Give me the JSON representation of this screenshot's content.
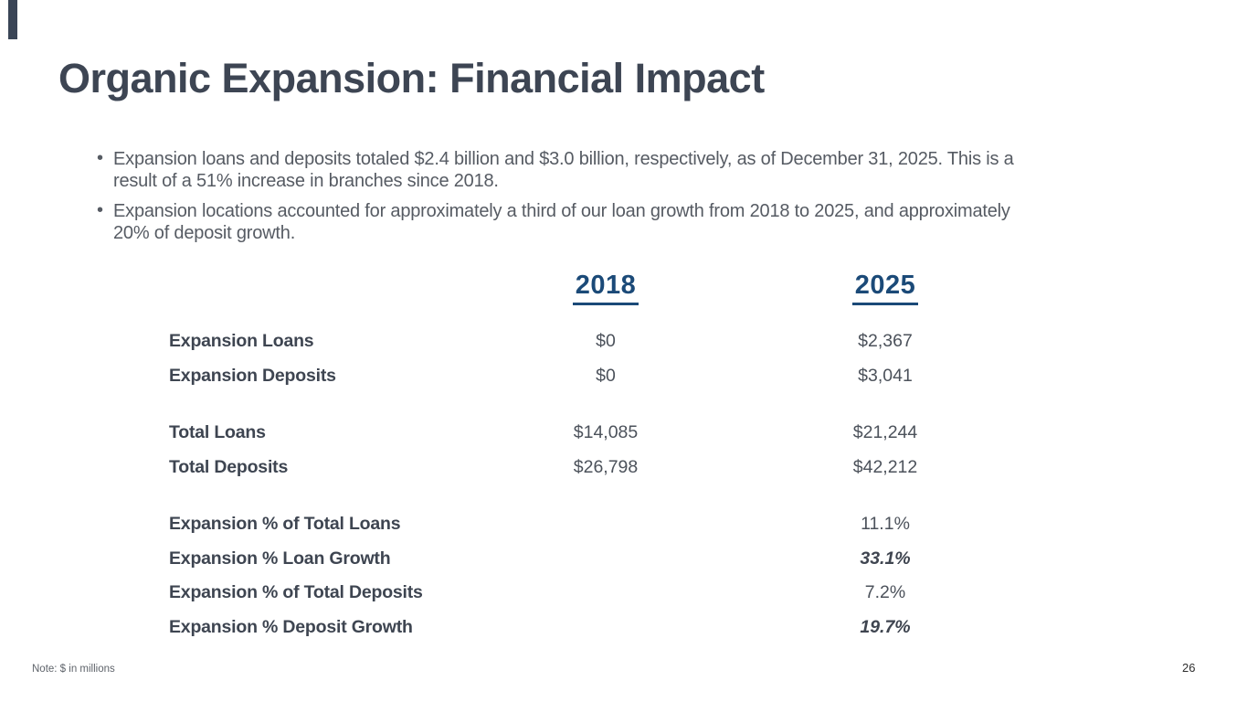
{
  "slide": {
    "title": "Organic Expansion: Financial Impact",
    "bullets": [
      "Expansion loans and deposits totaled $2.4 billion and $3.0 billion, respectively, as of December 31, 2025. This is a result of a 51% increase in branches since 2018.",
      "Expansion locations accounted for approximately a third of our loan growth from 2018 to 2025, and approximately 20% of deposit growth."
    ],
    "note": "Note: $ in millions",
    "page_number": "26"
  },
  "table": {
    "columns": [
      "2018",
      "2025"
    ],
    "rows": [
      {
        "label": "Expansion Loans",
        "v2018": "$0",
        "v2025": "$2,367",
        "gap": false,
        "bold_italic": false
      },
      {
        "label": "Expansion Deposits",
        "v2018": "$0",
        "v2025": "$3,041",
        "gap": false,
        "bold_italic": false
      },
      {
        "label": "Total Loans",
        "v2018": "$14,085",
        "v2025": "$21,244",
        "gap": true,
        "bold_italic": false
      },
      {
        "label": "Total Deposits",
        "v2018": "$26,798",
        "v2025": "$42,212",
        "gap": false,
        "bold_italic": false
      },
      {
        "label": "Expansion % of Total Loans",
        "v2018": "",
        "v2025": "11.1%",
        "gap": true,
        "bold_italic": false
      },
      {
        "label": "Expansion % Loan Growth",
        "v2018": "",
        "v2025": "33.1%",
        "gap": false,
        "bold_italic": true
      },
      {
        "label": "Expansion % of Total Deposits",
        "v2018": "",
        "v2025": "7.2%",
        "gap": false,
        "bold_italic": false
      },
      {
        "label": "Expansion % Deposit Growth",
        "v2018": "",
        "v2025": "19.7%",
        "gap": false,
        "bold_italic": true
      }
    ]
  },
  "colors": {
    "accent_bar": "#3a4556",
    "title_text": "#3d4553",
    "header_blue": "#1b4a78",
    "body_text": "#565b63",
    "label_text": "#3e4551",
    "value_text": "#4c525b",
    "background": "#ffffff"
  }
}
